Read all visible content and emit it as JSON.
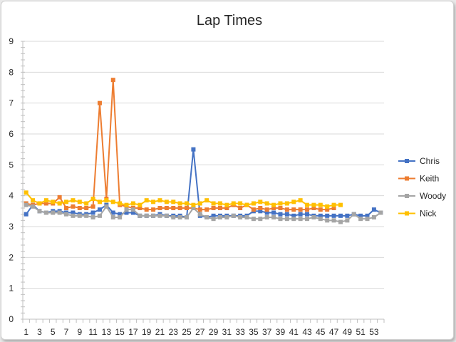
{
  "chart_data": {
    "type": "line",
    "title": "Lap Times",
    "xlabel": "",
    "ylabel": "",
    "ylim": [
      0,
      9
    ],
    "yticks": [
      0,
      1,
      2,
      3,
      4,
      5,
      6,
      7,
      8,
      9
    ],
    "xlim": [
      1,
      54
    ],
    "xtick_labels": [
      1,
      3,
      5,
      7,
      9,
      11,
      13,
      15,
      17,
      19,
      21,
      23,
      25,
      27,
      29,
      31,
      33,
      35,
      37,
      39,
      41,
      43,
      45,
      47,
      49,
      51,
      53
    ],
    "grid": "horizontal",
    "legend": "right",
    "series": [
      {
        "name": "Chris",
        "color": "#4472C4",
        "marker": "square",
        "values": [
          3.4,
          3.7,
          3.5,
          3.45,
          3.5,
          3.5,
          3.45,
          3.45,
          3.4,
          3.4,
          3.45,
          3.55,
          3.7,
          3.45,
          3.4,
          3.45,
          3.45,
          3.35,
          3.35,
          3.35,
          3.4,
          3.35,
          3.35,
          3.35,
          3.3,
          5.5,
          3.35,
          3.3,
          3.35,
          3.35,
          3.35,
          3.35,
          3.35,
          3.35,
          3.5,
          3.5,
          3.45,
          3.45,
          3.4,
          3.4,
          3.35,
          3.4,
          3.4,
          3.35,
          3.35,
          3.35,
          3.35,
          3.35,
          3.35,
          3.4,
          3.35,
          3.35,
          3.55,
          3.45
        ]
      },
      {
        "name": "Keith",
        "color": "#ED7D31",
        "marker": "square",
        "values": [
          3.75,
          3.7,
          3.75,
          3.75,
          3.75,
          3.95,
          3.6,
          3.65,
          3.6,
          3.6,
          3.65,
          7.0,
          3.9,
          7.75,
          3.7,
          3.65,
          3.6,
          3.6,
          3.55,
          3.55,
          3.6,
          3.6,
          3.6,
          3.6,
          3.6,
          3.6,
          3.55,
          3.55,
          3.6,
          3.6,
          3.6,
          3.7,
          3.6,
          3.7,
          3.55,
          3.6,
          3.55,
          3.6,
          3.6,
          3.55,
          3.55,
          3.55,
          3.55,
          3.6,
          3.55,
          3.55,
          3.6
        ]
      },
      {
        "name": "Woody",
        "color": "#A5A5A5",
        "marker": "square",
        "values": [
          3.7,
          3.65,
          3.5,
          3.45,
          3.45,
          3.45,
          3.4,
          3.35,
          3.35,
          3.35,
          3.3,
          3.35,
          3.65,
          3.3,
          3.3,
          3.55,
          3.55,
          3.35,
          3.35,
          3.35,
          3.35,
          3.35,
          3.3,
          3.3,
          3.3,
          3.6,
          3.4,
          3.3,
          3.25,
          3.3,
          3.3,
          3.35,
          3.3,
          3.3,
          3.25,
          3.25,
          3.3,
          3.3,
          3.25,
          3.25,
          3.25,
          3.25,
          3.25,
          3.3,
          3.25,
          3.2,
          3.2,
          3.15,
          3.2,
          3.4,
          3.25,
          3.25,
          3.3,
          3.45
        ]
      },
      {
        "name": "Nick",
        "color": "#FFC000",
        "marker": "square",
        "values": [
          4.1,
          3.85,
          3.75,
          3.85,
          3.8,
          3.75,
          3.8,
          3.85,
          3.8,
          3.75,
          3.9,
          3.8,
          3.85,
          3.8,
          3.75,
          3.7,
          3.75,
          3.7,
          3.85,
          3.8,
          3.85,
          3.8,
          3.8,
          3.75,
          3.75,
          3.7,
          3.75,
          3.85,
          3.75,
          3.75,
          3.7,
          3.75,
          3.75,
          3.7,
          3.75,
          3.8,
          3.75,
          3.7,
          3.75,
          3.75,
          3.8,
          3.85,
          3.7,
          3.7,
          3.7,
          3.65,
          3.7,
          3.7
        ]
      }
    ]
  }
}
